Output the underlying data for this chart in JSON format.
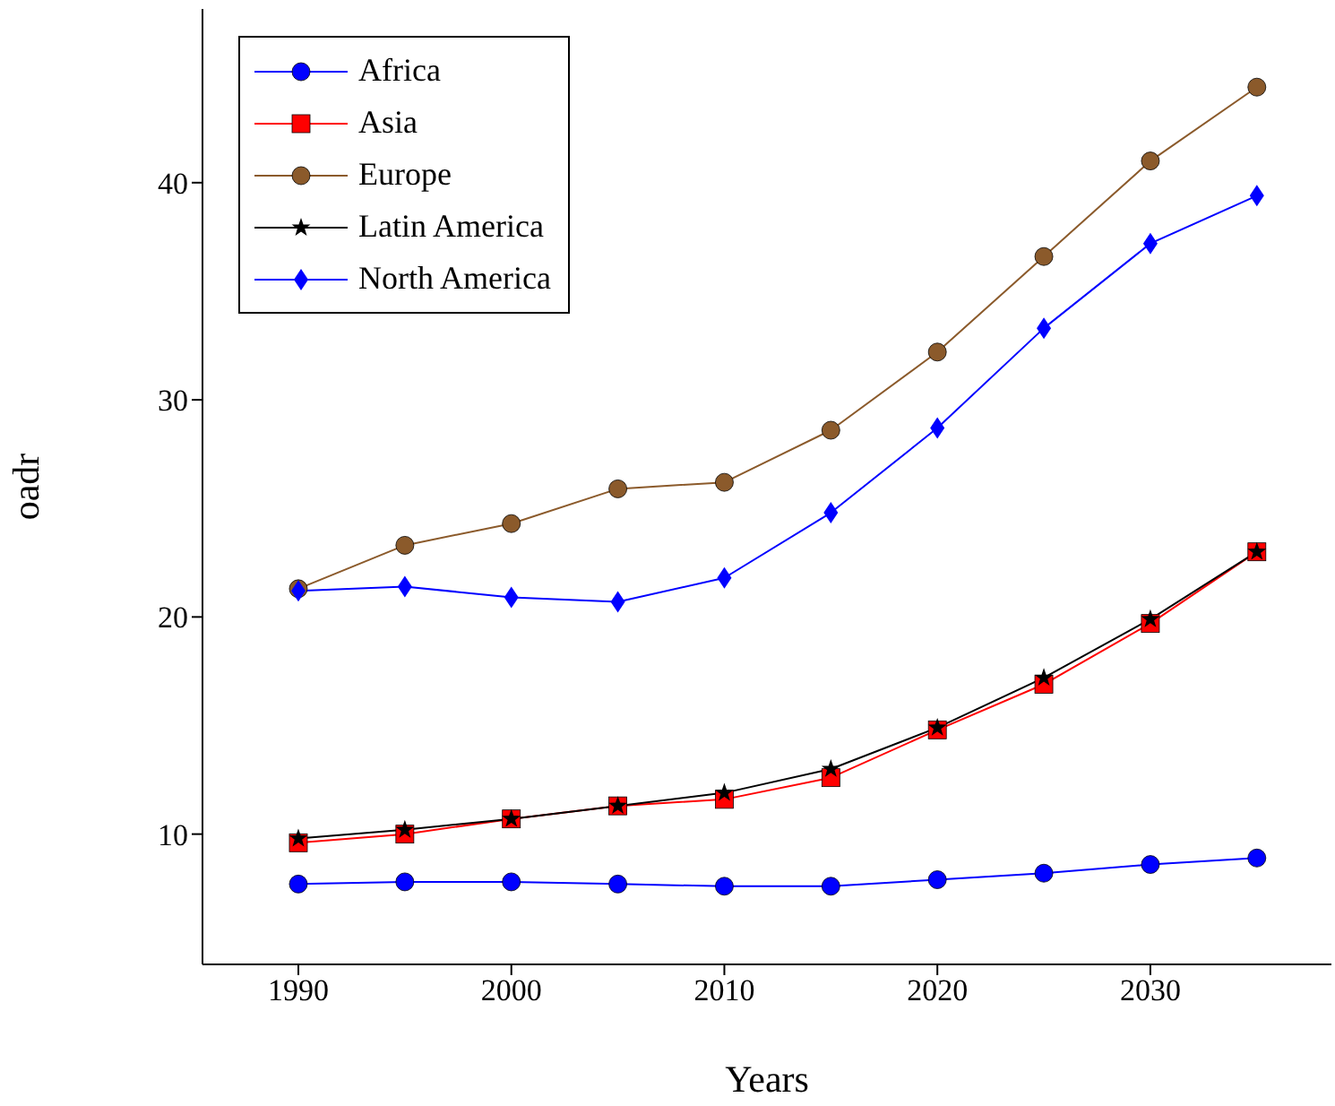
{
  "chart_data": {
    "type": "line",
    "xlabel": "Years",
    "ylabel": "oadr",
    "x": [
      1990,
      1995,
      2000,
      2005,
      2010,
      2015,
      2020,
      2025,
      2030,
      2035
    ],
    "series": [
      {
        "name": "Africa",
        "color": "#0000ff",
        "marker": "circle",
        "values": [
          7.7,
          7.8,
          7.8,
          7.7,
          7.6,
          7.6,
          7.9,
          8.2,
          8.6,
          8.9
        ]
      },
      {
        "name": "Asia",
        "color": "#ff0000",
        "marker": "square",
        "values": [
          9.6,
          10.0,
          10.7,
          11.3,
          11.6,
          12.6,
          14.8,
          16.9,
          19.7,
          23.0
        ]
      },
      {
        "name": "Europe",
        "color": "#8b5a2b",
        "marker": "circle",
        "values": [
          21.3,
          23.3,
          24.3,
          25.9,
          26.2,
          28.6,
          32.2,
          36.6,
          41.0,
          44.4
        ]
      },
      {
        "name": "Latin America",
        "color": "#000000",
        "marker": "star",
        "values": [
          9.8,
          10.2,
          10.7,
          11.3,
          11.9,
          13.0,
          14.9,
          17.2,
          19.9,
          23.0
        ]
      },
      {
        "name": "North America",
        "color": "#0000ff",
        "marker": "diamond",
        "values": [
          21.2,
          21.4,
          20.9,
          20.7,
          21.8,
          24.8,
          28.7,
          33.3,
          37.2,
          39.4
        ]
      }
    ],
    "xlim": [
      1985.5,
      2038.5
    ],
    "xticks": [
      1990,
      2000,
      2010,
      2020,
      2030
    ],
    "ylim": [
      4,
      48
    ],
    "yticks": [
      10,
      20,
      30,
      40
    ],
    "grid": false,
    "legend": "top left"
  }
}
